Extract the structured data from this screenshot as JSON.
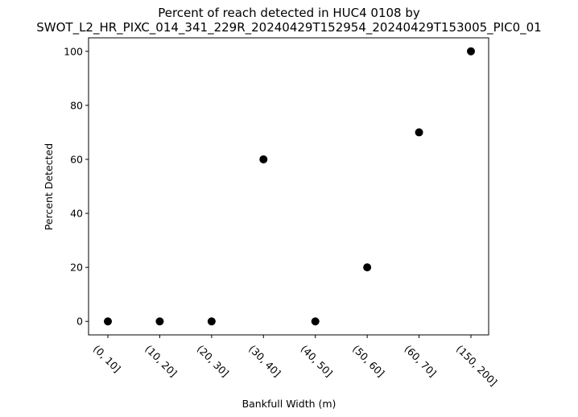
{
  "chart_data": {
    "type": "scatter",
    "title_line1": "Percent of reach detected in HUC4 0108 by",
    "title_line2": "SWOT_L2_HR_PIXC_014_341_229R_20240429T152954_20240429T153005_PIC0_01",
    "xlabel": "Bankfull Width (m)",
    "ylabel": "Percent Detected",
    "categories": [
      "(0, 10]",
      "(10, 20]",
      "(20, 30]",
      "(30, 40]",
      "(40, 50]",
      "(50, 60]",
      "(60, 70]",
      "(150, 200]"
    ],
    "values": [
      0,
      0,
      0,
      60,
      0,
      20,
      70,
      100
    ],
    "yticks": [
      0,
      20,
      40,
      60,
      80,
      100
    ],
    "ylim": [
      -5,
      105
    ],
    "grid": false,
    "marker_color": "#000000"
  }
}
